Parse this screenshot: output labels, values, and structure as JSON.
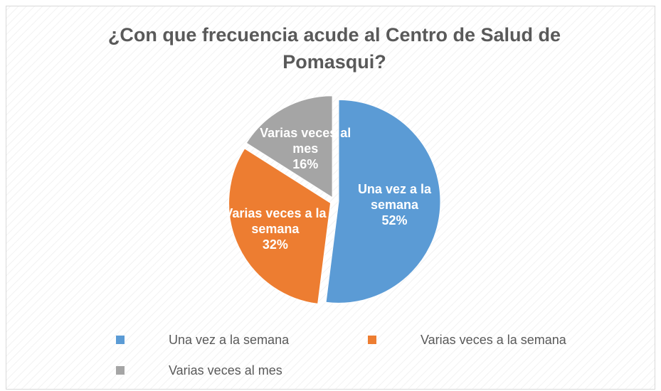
{
  "chart_data": {
    "type": "pie",
    "title": "¿Con que frecuencia acude al Centro de Salud de Pomasqui?",
    "categories": [
      "Una vez a la semana",
      "Varias veces a la semana",
      "Varias veces al mes"
    ],
    "values": [
      52,
      32,
      16
    ],
    "value_labels": [
      "52%",
      "32%",
      "16%"
    ],
    "colors": [
      "#5b9bd5",
      "#ed7d31",
      "#a5a5a5"
    ],
    "legend": "bottom"
  }
}
